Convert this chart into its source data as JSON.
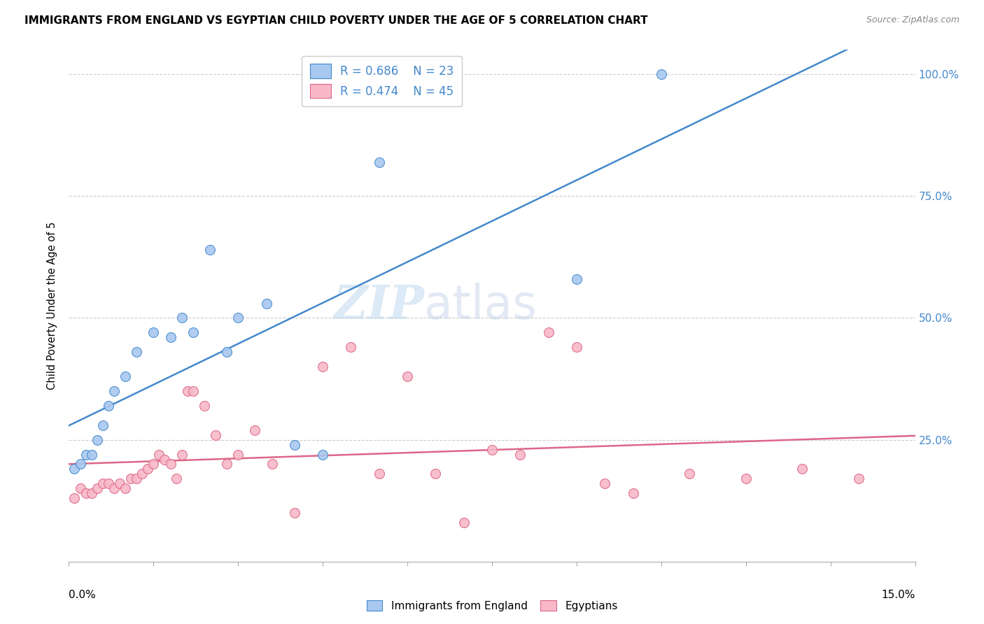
{
  "title": "IMMIGRANTS FROM ENGLAND VS EGYPTIAN CHILD POVERTY UNDER THE AGE OF 5 CORRELATION CHART",
  "source": "Source: ZipAtlas.com",
  "ylabel": "Child Poverty Under the Age of 5",
  "legend_label1": "Immigrants from England",
  "legend_label2": "Egyptians",
  "R1": "0.686",
  "N1": "23",
  "R2": "0.474",
  "N2": "45",
  "color_england": "#a8c8f0",
  "color_egypt": "#f8b8c8",
  "line_color_england": "#4488cc",
  "line_color_egypt": "#dd6688",
  "watermark_zip": "ZIP",
  "watermark_atlas": "atlas",
  "england_x": [
    0.001,
    0.002,
    0.003,
    0.004,
    0.005,
    0.006,
    0.007,
    0.008,
    0.01,
    0.012,
    0.015,
    0.018,
    0.02,
    0.022,
    0.025,
    0.028,
    0.03,
    0.035,
    0.04,
    0.045,
    0.055,
    0.09,
    0.105
  ],
  "england_y": [
    0.19,
    0.2,
    0.22,
    0.22,
    0.25,
    0.28,
    0.32,
    0.35,
    0.38,
    0.43,
    0.47,
    0.46,
    0.5,
    0.47,
    0.64,
    0.43,
    0.5,
    0.53,
    0.24,
    0.22,
    0.82,
    0.58,
    1.0
  ],
  "egypt_x": [
    0.001,
    0.002,
    0.003,
    0.004,
    0.005,
    0.006,
    0.007,
    0.008,
    0.009,
    0.01,
    0.011,
    0.012,
    0.013,
    0.014,
    0.015,
    0.016,
    0.017,
    0.018,
    0.019,
    0.02,
    0.021,
    0.022,
    0.024,
    0.026,
    0.028,
    0.03,
    0.033,
    0.036,
    0.04,
    0.045,
    0.05,
    0.055,
    0.06,
    0.065,
    0.07,
    0.075,
    0.08,
    0.085,
    0.09,
    0.095,
    0.1,
    0.11,
    0.12,
    0.13,
    0.14
  ],
  "egypt_y": [
    0.13,
    0.15,
    0.14,
    0.14,
    0.15,
    0.16,
    0.16,
    0.15,
    0.16,
    0.15,
    0.17,
    0.17,
    0.18,
    0.19,
    0.2,
    0.22,
    0.21,
    0.2,
    0.17,
    0.22,
    0.35,
    0.35,
    0.32,
    0.26,
    0.2,
    0.22,
    0.27,
    0.2,
    0.1,
    0.4,
    0.44,
    0.18,
    0.38,
    0.18,
    0.08,
    0.23,
    0.22,
    0.47,
    0.44,
    0.16,
    0.14,
    0.18,
    0.17,
    0.19,
    0.17
  ],
  "xlim": [
    0,
    0.15
  ],
  "ylim": [
    0,
    1.05
  ],
  "ytick_vals": [
    0.25,
    0.5,
    0.75,
    1.0
  ],
  "ytick_labels": [
    "25.0%",
    "50.0%",
    "75.0%",
    "100.0%"
  ],
  "xtick_vals": [
    0,
    0.015,
    0.03,
    0.045,
    0.06,
    0.075,
    0.09,
    0.105,
    0.12,
    0.135,
    0.15
  ]
}
